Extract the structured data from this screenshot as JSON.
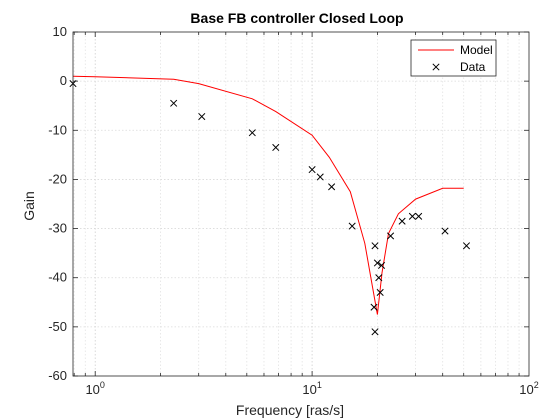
{
  "chart_data": {
    "type": "line",
    "title": "Base FB controller Closed Loop",
    "xlabel": "Frequency [ras/s]",
    "ylabel": "Gain",
    "xscale": "log",
    "xlim": [
      0.79,
      100
    ],
    "ylim": [
      -60,
      10
    ],
    "xticks": [
      1,
      10,
      100
    ],
    "xtick_labels": [
      {
        "base": "10",
        "exp": "0"
      },
      {
        "base": "10",
        "exp": "1"
      },
      {
        "base": "10",
        "exp": "2"
      }
    ],
    "yticks": [
      10,
      0,
      -10,
      -20,
      -30,
      -40,
      -50,
      -60
    ],
    "grid": true,
    "legend_position": "top-right",
    "series": [
      {
        "name": "Model",
        "kind": "line",
        "color": "#ff0000",
        "x": [
          0.78,
          1.0,
          2.3,
          3.0,
          5.3,
          6.8,
          10.0,
          12.0,
          15.0,
          17.5,
          19.0,
          20.0,
          21.0,
          22.5,
          25.0,
          30.0,
          40.0,
          50.0
        ],
        "y": [
          1.0,
          0.9,
          0.4,
          -0.5,
          -3.6,
          -6.2,
          -11.0,
          -15.5,
          -22.5,
          -33.0,
          -42.0,
          -47.5,
          -39.0,
          -31.0,
          -27.0,
          -24.0,
          -21.8,
          -21.8
        ]
      },
      {
        "name": "Data",
        "kind": "marker",
        "marker": "x",
        "color": "#000000",
        "x": [
          0.79,
          2.3,
          3.1,
          5.3,
          6.8,
          10.0,
          10.9,
          12.3,
          15.3,
          19.5,
          19.3,
          19.5,
          20.0,
          20.3,
          20.6,
          20.9,
          23.0,
          26.0,
          29.0,
          31.0,
          41.0,
          51.5
        ],
        "y": [
          -0.5,
          -4.5,
          -7.2,
          -10.5,
          -13.5,
          -18.0,
          -19.5,
          -21.5,
          -29.5,
          -33.5,
          -46.0,
          -51.0,
          -37.0,
          -40.0,
          -43.0,
          -37.5,
          -31.5,
          -28.5,
          -27.5,
          -27.5,
          -30.5,
          -33.5
        ]
      }
    ]
  }
}
